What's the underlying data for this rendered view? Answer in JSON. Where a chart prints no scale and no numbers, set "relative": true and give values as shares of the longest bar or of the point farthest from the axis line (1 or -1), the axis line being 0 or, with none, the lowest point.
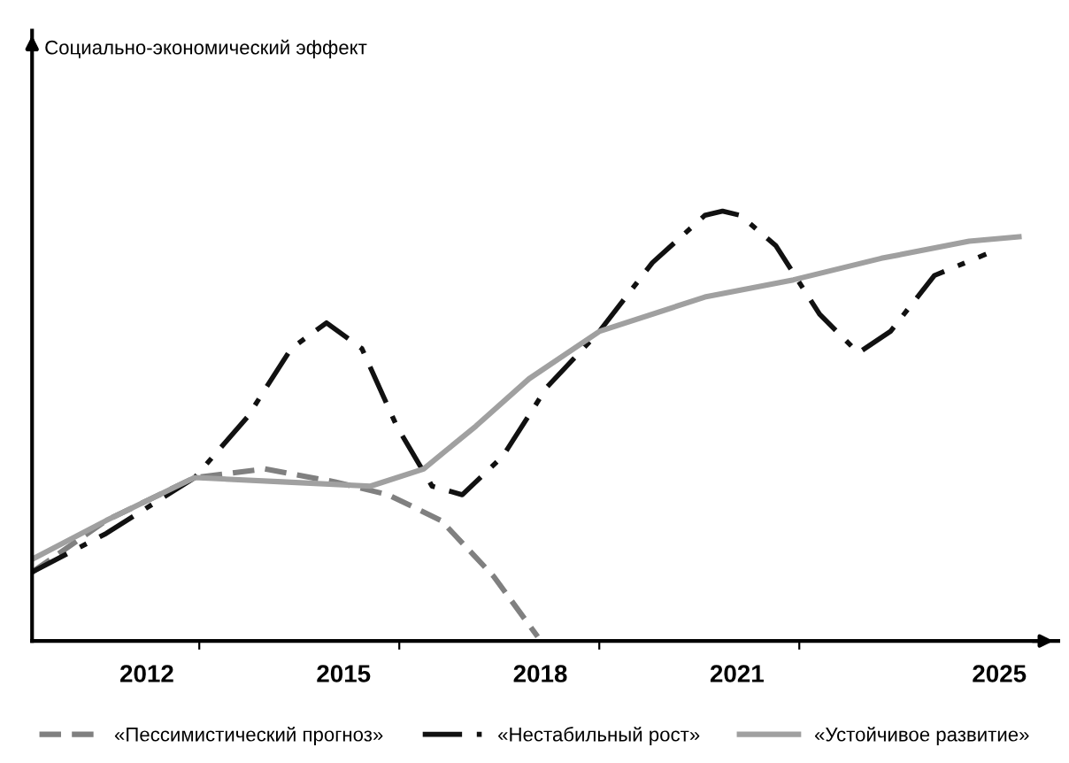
{
  "chart_data": {
    "type": "line",
    "relative": true,
    "annotations": [
      "Социально-экономический эффект"
    ],
    "xlim": [
      2010.25,
      2025.9
    ],
    "xticks": [
      2012,
      {
        "value": 2012.8,
        "label": null
      },
      2015,
      {
        "value": 2015.85,
        "label": null
      },
      2018,
      {
        "value": 2018.9,
        "label": null
      },
      2021,
      {
        "value": 2021.95,
        "label": null
      },
      2025
    ],
    "legend": "bottom",
    "grid": false,
    "series": [
      {
        "name": "«Пессимистический прогноз»",
        "color": "#808080",
        "line_style": "dashed",
        "x": [
          2010.25,
          2011.38,
          2012.73,
          2013.8,
          2014.87,
          2015.68,
          2016.49,
          2017.29,
          2017.96
        ],
        "values": [
          0.16,
          0.28,
          0.38,
          0.4,
          0.37,
          0.34,
          0.28,
          0.15,
          0.01
        ]
      },
      {
        "name": "«Нестабильный рост»",
        "color": "#111111",
        "line_style": "dashdot",
        "x": [
          2010.25,
          2011.38,
          2012.73,
          2013.53,
          2014.2,
          2014.74,
          2015.28,
          2015.81,
          2016.35,
          2016.81,
          2017.43,
          2018.1,
          2018.9,
          2019.71,
          2020.51,
          2020.78,
          2021.05,
          2021.59,
          2022.26,
          2022.85,
          2023.34,
          2024.01,
          2024.8
        ],
        "values": [
          0.16,
          0.25,
          0.38,
          0.52,
          0.68,
          0.74,
          0.68,
          0.5,
          0.36,
          0.34,
          0.43,
          0.59,
          0.72,
          0.88,
          0.99,
          1.0,
          0.99,
          0.92,
          0.76,
          0.67,
          0.72,
          0.85,
          0.9
        ]
      },
      {
        "name": "«Устойчивое развитие»",
        "color": "#a0a0a0",
        "line_style": "solid",
        "x": [
          2010.25,
          2011.38,
          2012.73,
          2014.07,
          2015.41,
          2016.22,
          2017.02,
          2017.83,
          2018.9,
          2020.51,
          2021.86,
          2023.2,
          2024.54,
          2025.3
        ],
        "values": [
          0.19,
          0.28,
          0.38,
          0.37,
          0.36,
          0.4,
          0.5,
          0.61,
          0.72,
          0.8,
          0.84,
          0.89,
          0.93,
          0.94
        ]
      }
    ]
  }
}
